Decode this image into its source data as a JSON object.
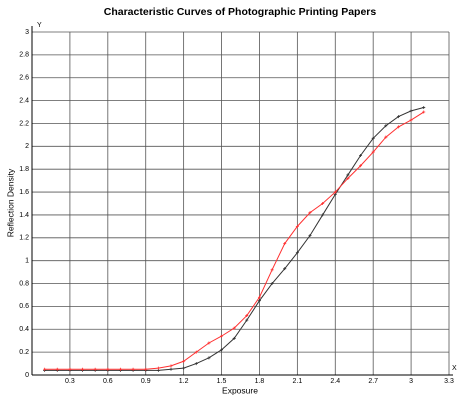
{
  "chart_data": {
    "type": "line",
    "title": "Characteristic Curves of Photographic Printing Papers",
    "x_label": "Exposure",
    "y_label": "Reflection Density",
    "y_axis_letter": "Y",
    "x_axis_letter": "X",
    "x": [
      0.1,
      0.2,
      0.3,
      0.4,
      0.5,
      0.6,
      0.7,
      0.8,
      0.9,
      1.0,
      1.1,
      1.2,
      1.3,
      1.4,
      1.5,
      1.6,
      1.7,
      1.8,
      1.9,
      2.0,
      2.1,
      2.2,
      2.3,
      2.4,
      2.5,
      2.6,
      2.7,
      2.8,
      2.9,
      3.0,
      3.1
    ],
    "series": [
      {
        "color": "#333333",
        "values": [
          0.04,
          0.04,
          0.04,
          0.04,
          0.04,
          0.04,
          0.04,
          0.04,
          0.04,
          0.04,
          0.05,
          0.06,
          0.1,
          0.15,
          0.22,
          0.32,
          0.48,
          0.65,
          0.8,
          0.93,
          1.07,
          1.22,
          1.4,
          1.58,
          1.75,
          1.92,
          2.07,
          2.18,
          2.26,
          2.31,
          2.34
        ]
      },
      {
        "color": "#ff3030",
        "values": [
          0.05,
          0.05,
          0.05,
          0.05,
          0.05,
          0.05,
          0.05,
          0.05,
          0.05,
          0.06,
          0.08,
          0.12,
          0.2,
          0.28,
          0.34,
          0.41,
          0.52,
          0.68,
          0.92,
          1.15,
          1.3,
          1.42,
          1.5,
          1.6,
          1.72,
          1.83,
          1.95,
          2.08,
          2.17,
          2.23,
          2.3
        ]
      }
    ],
    "xlim": [
      0,
      3.3
    ],
    "ylim": [
      0,
      3
    ],
    "xticks": [
      0.3,
      0.6,
      0.9,
      1.2,
      1.5,
      1.8,
      2.1,
      2.4,
      2.7,
      3,
      3.3
    ],
    "yticks": [
      0,
      0.2,
      0.4,
      0.6,
      0.8,
      1,
      1.2,
      1.4,
      1.6,
      1.8,
      2,
      2.2,
      2.4,
      2.6,
      2.8,
      3
    ],
    "grid": true
  }
}
